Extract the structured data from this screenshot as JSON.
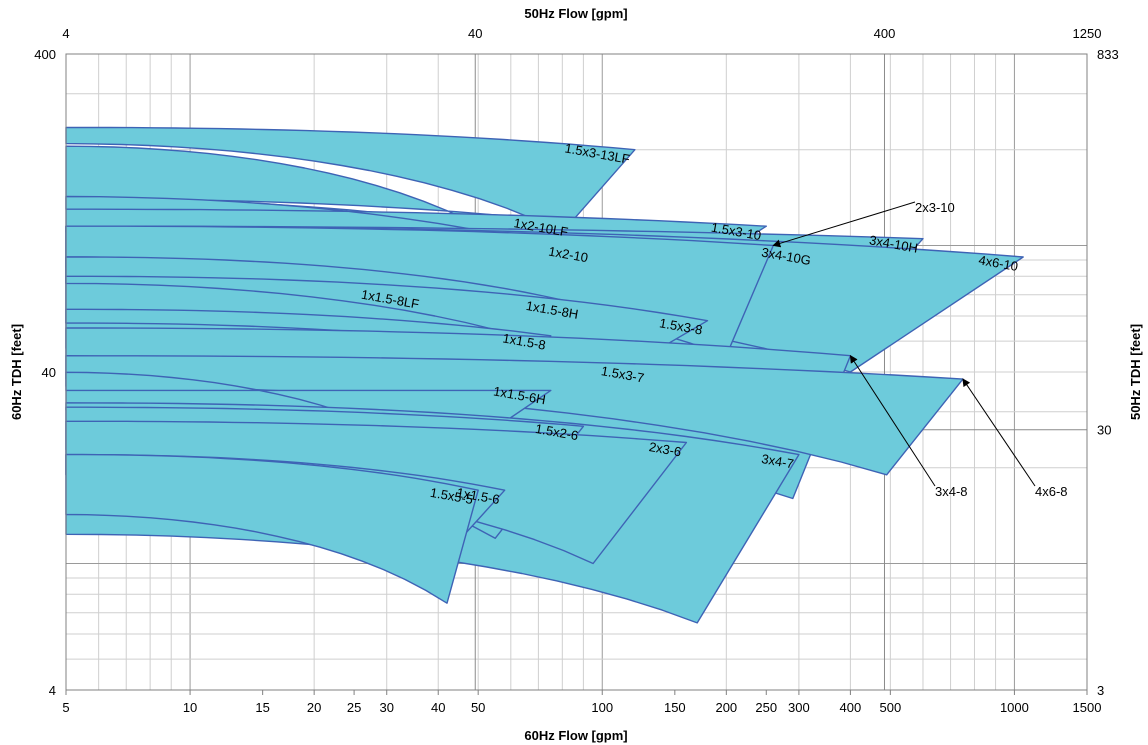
{
  "chart_data": {
    "type": "area",
    "log_scale": true,
    "grid": true,
    "fill_color": "#6DCBDB",
    "edge_color": "#3E63B5",
    "axes": {
      "x_bottom": {
        "title": "60Hz Flow [gpm]",
        "range": [
          5,
          1500
        ],
        "ticks": [
          "5",
          "10",
          "15",
          "20",
          "25",
          "30",
          "40",
          "50",
          "100",
          "150",
          "200",
          "250",
          "300",
          "400",
          "500",
          "1000",
          "1500"
        ]
      },
      "x_top": {
        "title": "50Hz Flow [gpm]",
        "range": [
          4,
          1250
        ],
        "ticks": [
          "4",
          "40",
          "400",
          "1250"
        ]
      },
      "y_left": {
        "title": "60Hz TDH [feet]",
        "range": [
          4,
          400
        ],
        "ticks": [
          "4",
          "40",
          "400"
        ]
      },
      "y_right": {
        "title": "50Hz TDH [feet]",
        "range": [
          3,
          833
        ],
        "ticks": [
          "3",
          "30",
          "833"
        ]
      }
    },
    "series": [
      {
        "name": "1.5x3-13LF",
        "shut_off_ft": 235,
        "bep_flow_gpm": 120,
        "bep_head_ft": 200,
        "min_flow_gpm": 80,
        "min_head_ft": 110
      },
      {
        "name": "1x2-10LF",
        "shut_off_ft": 140,
        "bep_flow_gpm": 85,
        "bep_head_ft": 118,
        "min_flow_gpm": 55,
        "min_head_ft": 108
      },
      {
        "name": "1x2-10",
        "shut_off_ft": 140,
        "bep_flow_gpm": 95,
        "bep_head_ft": 98,
        "min_flow_gpm": 52,
        "min_head_ft": 58
      },
      {
        "name": "1.5x3-10",
        "shut_off_ft": 130,
        "bep_flow_gpm": 250,
        "bep_head_ft": 115,
        "min_flow_gpm": 150,
        "min_head_ft": 75
      },
      {
        "name": "3x4-10G",
        "shut_off_ft": 115,
        "bep_flow_gpm": 330,
        "bep_head_ft": 96,
        "min_flow_gpm": 170,
        "min_head_ft": 30
      },
      {
        "name": "3x4-10H",
        "shut_off_ft": 115,
        "bep_flow_gpm": 600,
        "bep_head_ft": 105,
        "min_flow_gpm": 250,
        "min_head_ft": 30
      },
      {
        "name": "4x6-10",
        "shut_off_ft": 115,
        "bep_flow_gpm": 1050,
        "bep_head_ft": 92,
        "min_flow_gpm": 400,
        "min_head_ft": 40
      },
      {
        "name": "1x1.5-8LF",
        "shut_off_ft": 92,
        "bep_flow_gpm": 37,
        "bep_head_ft": 70,
        "min_flow_gpm": 35,
        "min_head_ft": 40
      },
      {
        "name": "1x1.5-8H",
        "shut_off_ft": 92,
        "bep_flow_gpm": 90,
        "bep_head_ft": 65,
        "min_flow_gpm": 48,
        "min_head_ft": 30
      },
      {
        "name": "1x1.5-8",
        "shut_off_ft": 63,
        "bep_flow_gpm": 75,
        "bep_head_ft": 52,
        "min_flow_gpm": 42,
        "min_head_ft": 20
      },
      {
        "name": "1.5x3-8",
        "shut_off_ft": 80,
        "bep_flow_gpm": 180,
        "bep_head_ft": 58,
        "min_flow_gpm": 110,
        "min_head_ft": 40
      },
      {
        "name": "1.5x3-7",
        "shut_off_ft": 57,
        "bep_flow_gpm": 130,
        "bep_head_ft": 41,
        "min_flow_gpm": 90,
        "min_head_ft": 25
      },
      {
        "name": "1x1.5-6H",
        "shut_off_ft": 35,
        "bep_flow_gpm": 75,
        "bep_head_ft": 35,
        "min_flow_gpm": 42,
        "min_head_ft": 21
      },
      {
        "name": "1x1.5-6",
        "shut_off_ft": 22,
        "bep_flow_gpm": 58,
        "bep_head_ft": 17,
        "min_flow_gpm": 40,
        "min_head_ft": 10
      },
      {
        "name": "1.5x5-5",
        "shut_off_ft": 22,
        "bep_flow_gpm": 50,
        "bep_head_ft": 17,
        "min_flow_gpm": 42,
        "min_head_ft": 7.5
      },
      {
        "name": "1.5x2-6",
        "shut_off_ft": 31,
        "bep_flow_gpm": 90,
        "bep_head_ft": 27,
        "min_flow_gpm": 55,
        "min_head_ft": 12
      },
      {
        "name": "2x3-6",
        "shut_off_ft": 28,
        "bep_flow_gpm": 160,
        "bep_head_ft": 24,
        "min_flow_gpm": 95,
        "min_head_ft": 10
      },
      {
        "name": "2x3-10",
        "shut_off_ft": 115,
        "bep_flow_gpm": 260,
        "bep_head_ft": 100,
        "min_flow_gpm": 200,
        "min_head_ft": 45
      },
      {
        "name": "3x4-7",
        "shut_off_ft": 32,
        "bep_flow_gpm": 300,
        "bep_head_ft": 22,
        "min_flow_gpm": 170,
        "min_head_ft": 6.5
      },
      {
        "name": "3x4-8",
        "shut_off_ft": 55,
        "bep_flow_gpm": 400,
        "bep_head_ft": 45,
        "min_flow_gpm": 290,
        "min_head_ft": 16
      },
      {
        "name": "4x6-8",
        "shut_off_ft": 45,
        "bep_flow_gpm": 750,
        "bep_head_ft": 38,
        "min_flow_gpm": 490,
        "min_head_ft": 19
      }
    ]
  }
}
